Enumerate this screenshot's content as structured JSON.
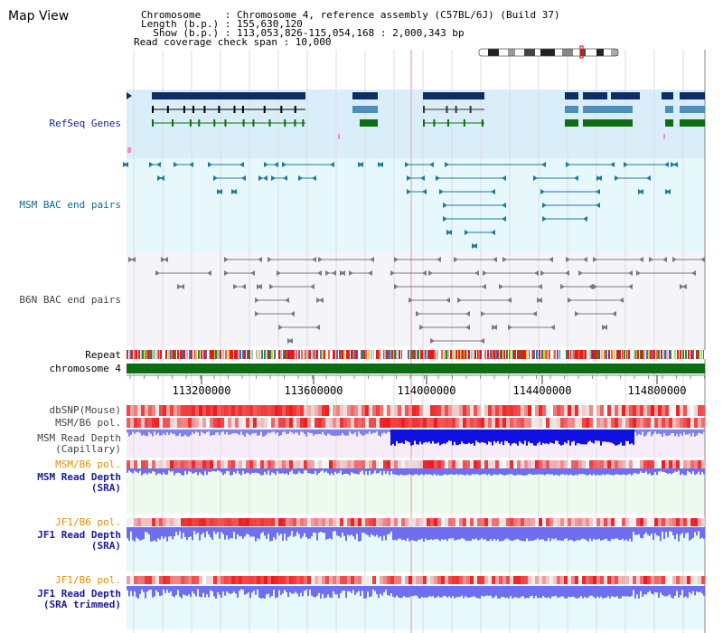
{
  "title": "Map View",
  "info": {
    "chromosome": "Chromosome    : Chromosome 4, reference assembly (C57BL/6J) (Build 37)",
    "length": "Length (b.p.) : 155,630,120",
    "show": "  Show (b.p.) : 113,053,826-115,054,168 : 2,000,343 bp",
    "coverage": "Read coverage check span : 10,000"
  },
  "tracks": {
    "refseq": "RefSeq Genes",
    "msm_bac": "MSM BAC end pairs",
    "b6n_bac": "B6N BAC end pairs",
    "repeat": "Repeat",
    "chromosome": "chromosome 4",
    "dbsnp": "dbSNP(Mouse)",
    "msm_b6_pol": "MSM/B6 pol.",
    "msm_depth_cap_1": "MSM Read Depth",
    "msm_depth_cap_2": "(Capillary)",
    "msm_b6_pol_2": "MSM/B6 pol.",
    "msm_depth_sra_1": "MSM Read Depth",
    "msm_depth_sra_2": "(SRA)",
    "jf1_b6_pol": "JF1/B6 pol.",
    "jf1_depth_sra_1": "JF1 Read Depth",
    "jf1_depth_sra_2": "(SRA)",
    "jf1_b6_pol_2": "JF1/B6 pol.",
    "jf1_depth_trim_1": "JF1 Read Depth",
    "jf1_depth_trim_2": "(SRA trimmed)"
  },
  "axis": {
    "ticks": [
      "113200000",
      "113600000",
      "114000000",
      "114400000",
      "114800000"
    ]
  },
  "colors": {
    "refseq_bg": "#daeefa",
    "msm_bac_bg": "#e6f8fb",
    "b6n_bac_bg": "#f5f5f9",
    "gene_dark": "#0d2d66",
    "gene_mid": "#4a90bb",
    "gene_green": "#0b6e12",
    "msm_bac": "#1e7a9a",
    "b6n_bac": "#7a7a7a",
    "chromosome": "#0b6e12",
    "label_blue": "#1a1a9a",
    "label_teal": "#0f6a8a",
    "label_gray": "#444444",
    "label_orange": "#e09000",
    "depth_blue": "#6e6ef0",
    "depth_deep": "#1010e0"
  }
}
